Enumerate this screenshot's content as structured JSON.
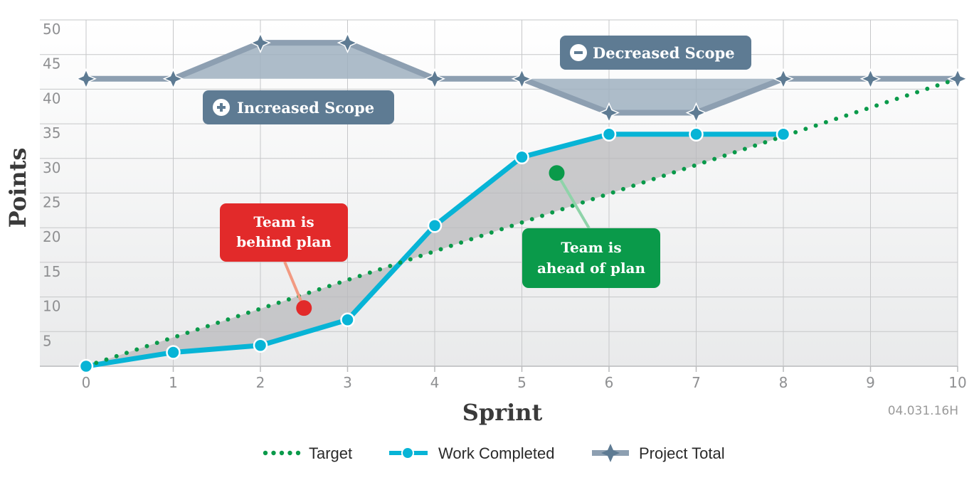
{
  "chart_data": {
    "type": "line",
    "xlabel": "Sprint",
    "ylabel": "Points",
    "x_ticks": [
      "0",
      "1",
      "2",
      "3",
      "4",
      "5",
      "6",
      "7",
      "8",
      "9",
      "10"
    ],
    "y_ticks": [
      "5",
      "10",
      "15",
      "20",
      "25",
      "30",
      "35",
      "40",
      "45",
      "50"
    ],
    "xlim": [
      0,
      10
    ],
    "ylim": [
      0,
      50
    ],
    "grid": true,
    "legend_position": "bottom",
    "series": [
      {
        "name": "Target",
        "style": "dotted",
        "color": "#0a9a4a",
        "x": [
          0,
          10
        ],
        "y": [
          0,
          41.5
        ]
      },
      {
        "name": "Work Completed",
        "style": "solid-markers",
        "color": "#07b4d6",
        "x": [
          0,
          1,
          2,
          3,
          4,
          5,
          6,
          7,
          8
        ],
        "y": [
          0,
          2,
          3,
          6.7,
          20.3,
          30.2,
          33.5,
          33.5,
          33.5
        ]
      },
      {
        "name": "Project Total",
        "style": "star-markers",
        "color": "#8d9fb1",
        "x": [
          0,
          1,
          2,
          3,
          4,
          5,
          6,
          7,
          8,
          9,
          10
        ],
        "y": [
          41.5,
          41.5,
          46.7,
          46.7,
          41.5,
          41.5,
          36.6,
          36.6,
          41.5,
          41.5,
          41.5
        ]
      }
    ],
    "annotations": {
      "behind": {
        "line1": "Team is",
        "line2": "behind plan",
        "x": 2.5,
        "y": 8.4,
        "color": "#e22a2a"
      },
      "ahead": {
        "line1": "Team is",
        "line2": "ahead of plan",
        "x": 5.4,
        "y": 27.9,
        "color": "#0a9a4a"
      },
      "increased": {
        "label": "Increased Scope"
      },
      "decreased": {
        "label": "Decreased Scope"
      }
    },
    "code": "04.031.16H"
  }
}
